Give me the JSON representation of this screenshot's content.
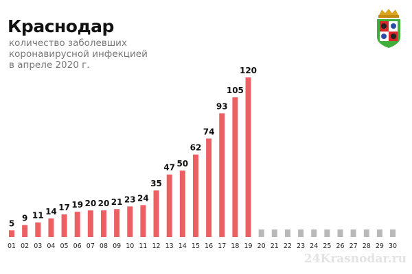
{
  "header": {
    "title": "Краснодар",
    "subtitle_lines": [
      "количество заболевших",
      "коронавирусной инфекцией",
      "в апреле 2020 г."
    ]
  },
  "watermark": "24Krasnodar.ru",
  "colors": {
    "bar": "#ec5f63",
    "future_bar": "#b9b9b9",
    "label": "#111111",
    "tick": "#222222"
  },
  "chart_data": {
    "type": "bar",
    "title": "Краснодар",
    "subtitle": "количество заболевших коронавирусной инфекцией в апреле 2020 г.",
    "xlabel": "",
    "ylabel": "",
    "grid": false,
    "categories": [
      "01",
      "02",
      "03",
      "04",
      "05",
      "06",
      "07",
      "08",
      "09",
      "10",
      "11",
      "12",
      "13",
      "14",
      "15",
      "16",
      "17",
      "18",
      "19",
      "20",
      "21",
      "22",
      "23",
      "24",
      "25",
      "26",
      "27",
      "28",
      "29",
      "30"
    ],
    "values": [
      5,
      9,
      11,
      14,
      17,
      19,
      20,
      20,
      21,
      23,
      24,
      35,
      47,
      50,
      62,
      74,
      93,
      105,
      120,
      null,
      null,
      null,
      null,
      null,
      null,
      null,
      null,
      null,
      null,
      null
    ],
    "ylim": [
      0,
      120
    ]
  }
}
